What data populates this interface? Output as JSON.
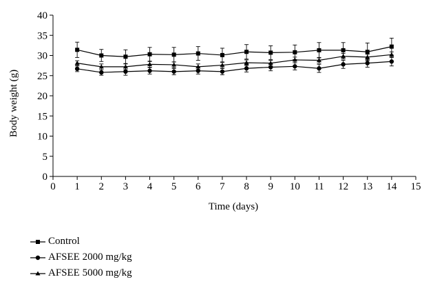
{
  "chart_data": {
    "type": "line",
    "xlabel": "Time (days)",
    "ylabel": "Body weight (g)",
    "xlim": [
      0,
      15
    ],
    "ylim": [
      0,
      40
    ],
    "xticks": [
      "0",
      "1",
      "2",
      "3",
      "4",
      "5",
      "6",
      "7",
      "8",
      "9",
      "10",
      "11",
      "12",
      "13",
      "14",
      "15"
    ],
    "yticks": [
      "0",
      "5",
      "10",
      "15",
      "20",
      "25",
      "30",
      "35",
      "40"
    ],
    "grid": false,
    "legend_position": "bottom-left",
    "x": [
      1,
      2,
      3,
      4,
      5,
      6,
      7,
      8,
      9,
      10,
      11,
      12,
      13,
      14
    ],
    "series": [
      {
        "name": "Control",
        "marker": "square",
        "values": [
          31.4,
          30.0,
          29.7,
          30.3,
          30.2,
          30.5,
          30.1,
          30.9,
          30.7,
          30.8,
          31.3,
          31.3,
          30.9,
          32.2
        ],
        "errors": [
          1.9,
          1.5,
          1.7,
          1.7,
          1.8,
          1.7,
          1.7,
          1.8,
          1.7,
          1.8,
          1.9,
          1.9,
          2.2,
          2.1
        ]
      },
      {
        "name": "AFSEE 2000 mg/kg",
        "marker": "circle",
        "values": [
          26.7,
          25.8,
          26.0,
          26.2,
          26.0,
          26.2,
          26.0,
          26.8,
          27.1,
          27.3,
          26.8,
          27.8,
          28.1,
          28.5
        ],
        "errors": [
          0.7,
          0.7,
          0.9,
          0.8,
          0.8,
          0.8,
          0.8,
          0.9,
          0.9,
          0.9,
          1.0,
          1.0,
          1.0,
          1.1
        ]
      },
      {
        "name": "AFSEE 5000 mg/kg",
        "marker": "triangle",
        "values": [
          28.1,
          27.2,
          27.2,
          27.8,
          27.7,
          27.2,
          27.6,
          28.2,
          28.1,
          28.9,
          28.8,
          29.8,
          29.6,
          30.2
        ],
        "errors": [
          0.6,
          0.7,
          0.7,
          0.7,
          0.7,
          0.7,
          0.7,
          0.7,
          0.7,
          0.7,
          0.7,
          0.7,
          0.7,
          0.7
        ]
      }
    ]
  }
}
